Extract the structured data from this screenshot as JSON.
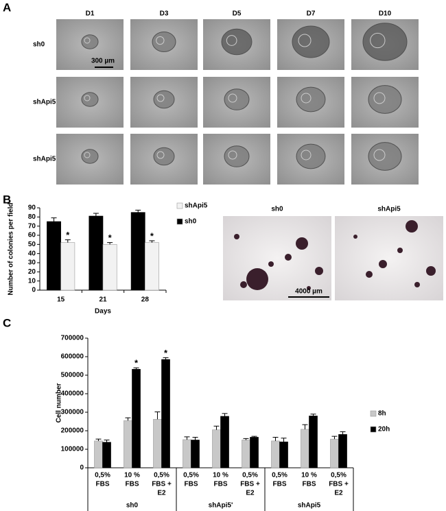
{
  "panels": [
    "A",
    "B",
    "C"
  ],
  "panel_a": {
    "columns": [
      "D1",
      "D3",
      "D5",
      "D7",
      "D10"
    ],
    "rows": [
      "sh0",
      "shApi5",
      "shApi5'"
    ],
    "scale_bar": "300 µm"
  },
  "panel_b_images": {
    "labels": [
      "sh0",
      "shApi5"
    ],
    "scale_bar": "4000 µm"
  },
  "chart_data": [
    {
      "type": "bar",
      "categories": [
        "15",
        "21",
        "28"
      ],
      "x_label": "Days",
      "y_label": "Number of colonies per field",
      "ylim": [
        0,
        90
      ],
      "yticks": [
        0,
        10,
        20,
        30,
        40,
        50,
        60,
        70,
        80,
        90
      ],
      "series": [
        {
          "name": "sh0",
          "color": "#000000",
          "values": [
            75,
            81,
            85
          ],
          "errors": [
            4,
            3,
            2.5
          ],
          "markers": [
            null,
            null,
            null
          ]
        },
        {
          "name": "shApi5",
          "color": "#f2f2f2",
          "values": [
            52,
            50,
            52
          ],
          "errors": [
            3,
            2,
            2
          ],
          "markers": [
            "*",
            "*",
            "*"
          ]
        }
      ]
    },
    {
      "type": "bar",
      "categories": [
        [
          "0,5%",
          "FBS"
        ],
        [
          "10 %",
          "FBS"
        ],
        [
          "0,5%",
          "FBS +",
          "E2"
        ],
        [
          "0,5%",
          "FBS"
        ],
        [
          "10 %",
          "FBS"
        ],
        [
          "0,5%",
          "FBS +",
          "E2"
        ],
        [
          "0,5%",
          "FBS"
        ],
        [
          "10 %",
          "FBS"
        ],
        [
          "0,5%",
          "FBS +",
          "E2"
        ]
      ],
      "groups": [
        "sh0",
        "shApi5'",
        "shApi5"
      ],
      "y_label": "Cell number",
      "ylim": [
        0,
        700000
      ],
      "yticks": [
        0,
        100000,
        200000,
        300000,
        400000,
        500000,
        600000,
        700000
      ],
      "series": [
        {
          "name": "8h",
          "color": "#c8c8c8",
          "values": [
            145000,
            255000,
            262000,
            152000,
            205000,
            150000,
            145000,
            208000,
            155000
          ],
          "errors": [
            10000,
            15000,
            40000,
            15000,
            20000,
            8000,
            20000,
            25000,
            15000
          ],
          "markers": [
            null,
            null,
            null,
            null,
            null,
            null,
            null,
            null,
            null
          ]
        },
        {
          "name": "20h",
          "color": "#000000",
          "values": [
            138000,
            532000,
            585000,
            150000,
            278000,
            165000,
            140000,
            280000,
            180000
          ],
          "errors": [
            12000,
            8000,
            10000,
            15000,
            15000,
            5000,
            20000,
            10000,
            15000
          ],
          "markers": [
            null,
            "*",
            "*",
            null,
            null,
            null,
            null,
            null,
            null
          ]
        }
      ]
    }
  ]
}
